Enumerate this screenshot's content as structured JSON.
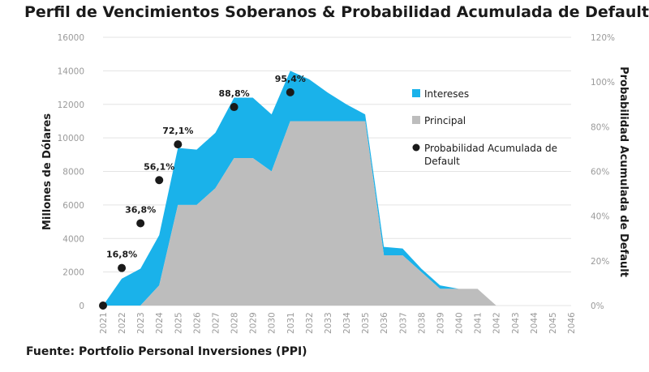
{
  "title": "Perfil de Vencimientos Soberanos & Probabilidad Acumulada de Default",
  "source": "Fuente: Portfolio Personal Inversiones (PPI)",
  "chart_data": {
    "type": "area",
    "title": "Perfil de Vencimientos Soberanos & Probabilidad Acumulada de Default",
    "ylabel": "Millones de Dólares",
    "y2label": "Probabilidad Acumulada de Default",
    "xlabel": "",
    "ylim": [
      0,
      16000
    ],
    "y2lim": [
      0,
      1.2
    ],
    "yticks": [
      "0",
      "2000",
      "4000",
      "6000",
      "8000",
      "10000",
      "12000",
      "14000",
      "16000"
    ],
    "y2ticks": [
      "0%",
      "20%",
      "40%",
      "60%",
      "80%",
      "100%",
      "120%"
    ],
    "categories": [
      "2021",
      "2022",
      "2023",
      "2024",
      "2025",
      "2026",
      "2027",
      "2028",
      "2029",
      "2030",
      "2031",
      "2032",
      "2033",
      "2034",
      "2035",
      "2036",
      "2037",
      "2038",
      "2039",
      "2040",
      "2041",
      "2042",
      "2043",
      "2044",
      "2045",
      "2046"
    ],
    "legend_position": "right",
    "series": [
      {
        "name": "Principal",
        "kind": "stacked-area",
        "color": "#bdbdbd",
        "values": [
          0,
          0,
          0,
          1200,
          6000,
          6000,
          7000,
          8800,
          8800,
          8000,
          11000,
          11000,
          11000,
          11000,
          11000,
          3000,
          3000,
          2000,
          1000,
          1000,
          1000,
          0,
          0,
          0,
          0,
          0
        ]
      },
      {
        "name": "Intereses",
        "kind": "stacked-area",
        "color": "#1ab2ea",
        "values": [
          0,
          1600,
          2200,
          3000,
          3400,
          3300,
          3300,
          3600,
          3600,
          3400,
          3000,
          2500,
          1700,
          1000,
          400,
          500,
          400,
          200,
          200,
          0,
          0,
          0,
          0,
          0,
          0,
          0
        ]
      },
      {
        "name": "Probabilidad Acumulada de Default",
        "kind": "scatter",
        "color": "#1a1a1a",
        "axis": "right",
        "x": [
          "2021",
          "2022",
          "2023",
          "2024",
          "2025",
          "2028",
          "2031"
        ],
        "values": [
          0.0,
          0.168,
          0.368,
          0.561,
          0.721,
          0.888,
          0.954
        ],
        "labels": [
          "",
          "16,8%",
          "36,8%",
          "56,1%",
          "72,1%",
          "88,8%",
          "95,4%"
        ]
      }
    ]
  }
}
